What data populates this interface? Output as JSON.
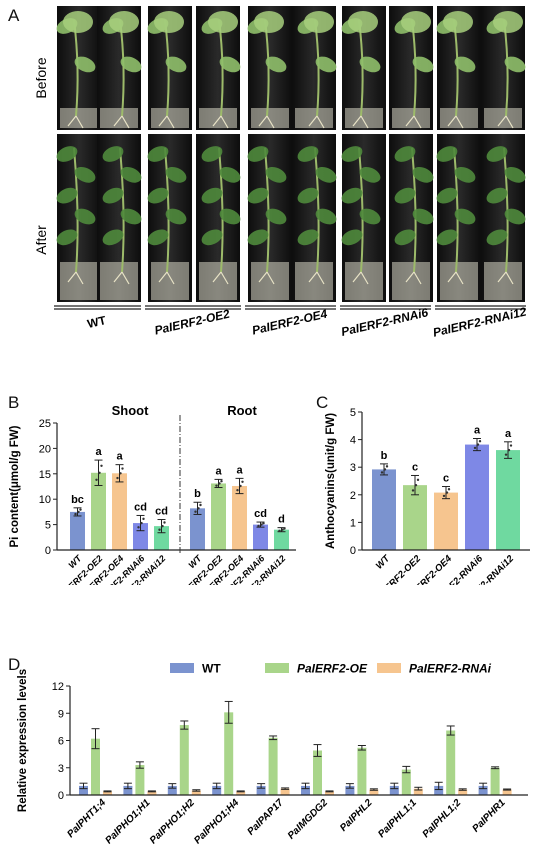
{
  "panels": {
    "A": "A",
    "B": "B",
    "C": "C",
    "D": "D"
  },
  "photo": {
    "row_labels": [
      "Before",
      "After"
    ],
    "genotypes": [
      "WT",
      "PaIERF2-OE2",
      "PaIERF2-OE4",
      "PaIERF2-RNAi6",
      "PaIERF2-RNAi12"
    ]
  },
  "colors": {
    "wt": "#7b93cf",
    "oe": "#a9d58a",
    "rnai": "#f6c58f",
    "rnai_c": "#7e88e6",
    "rnai12": "#6fd9a0"
  },
  "chart_data": [
    {
      "type": "bar",
      "panel": "B",
      "ylabel": "Pi content(μmol/g FW)",
      "ylim": [
        0,
        25
      ],
      "yticks": [
        0,
        5,
        10,
        15,
        20,
        25
      ],
      "groups": [
        {
          "name": "Shoot",
          "categories": [
            "WT",
            "PaIERF2-OE2",
            "PaIERF2-OE4",
            "PaIERF2-RNAi6",
            "PaIERF2-RNAi12"
          ],
          "values": [
            7.5,
            15.2,
            15.1,
            5.3,
            4.7
          ],
          "errors": [
            0.8,
            2.5,
            1.7,
            1.5,
            1.3
          ],
          "letters": [
            "bc",
            "a",
            "a",
            "cd",
            "cd"
          ]
        },
        {
          "name": "Root",
          "categories": [
            "WT",
            "PaIERF2-OE2",
            "PaIERF2-OE4",
            "PaIERF2-RNAi6",
            "PaIERF2-RNAi12"
          ],
          "values": [
            8.2,
            13.1,
            12.6,
            5.0,
            4.0
          ],
          "errors": [
            1.2,
            0.8,
            1.5,
            0.5,
            0.4
          ],
          "letters": [
            "b",
            "a",
            "a",
            "cd",
            "d"
          ]
        }
      ]
    },
    {
      "type": "bar",
      "panel": "C",
      "ylabel": "Anthocyanins(unit/g FW)",
      "ylim": [
        0,
        5
      ],
      "yticks": [
        0,
        1,
        2,
        3,
        4,
        5
      ],
      "categories": [
        "WT",
        "PaIERF2-OE2",
        "PaIERF2-OE4",
        "PPaIERF2-RNAi6",
        "aIERF2-RNAi12"
      ],
      "values": [
        2.92,
        2.35,
        2.08,
        3.82,
        3.62
      ],
      "errors": [
        0.2,
        0.35,
        0.22,
        0.22,
        0.3
      ],
      "letters": [
        "b",
        "c",
        "c",
        "a",
        "a"
      ]
    },
    {
      "type": "bar",
      "panel": "D",
      "ylabel": "Relative expression levels",
      "ylim": [
        0,
        12
      ],
      "yticks": [
        0,
        3,
        6,
        9,
        12
      ],
      "categories": [
        "PaIPHT1;4",
        "PaIPHO1;H1",
        "PaIPHO1;H2",
        "PaIPHO1;H4",
        "PaIPAP17",
        "PaIMGDG2",
        "PaIPHL2",
        "PaIPHL1;1",
        "PaIPHL1;2",
        "PaIPHR1"
      ],
      "series": [
        {
          "name": "WT",
          "values": [
            1.0,
            1.0,
            1.0,
            1.0,
            1.0,
            1.0,
            1.0,
            1.0,
            1.0,
            1.0
          ],
          "errors": [
            0.3,
            0.3,
            0.25,
            0.3,
            0.25,
            0.3,
            0.25,
            0.3,
            0.4,
            0.3
          ]
        },
        {
          "name": "PaIERF2-OE",
          "values": [
            6.2,
            3.3,
            7.7,
            9.1,
            6.3,
            4.9,
            5.2,
            2.8,
            7.1,
            3.0
          ],
          "errors": [
            1.1,
            0.35,
            0.45,
            1.2,
            0.2,
            0.65,
            0.25,
            0.35,
            0.5,
            0.1
          ]
        },
        {
          "name": "PaIERF2-RNAi",
          "values": [
            0.4,
            0.4,
            0.5,
            0.4,
            0.7,
            0.4,
            0.6,
            0.7,
            0.6,
            0.6
          ],
          "errors": [
            0.05,
            0.05,
            0.08,
            0.05,
            0.08,
            0.05,
            0.08,
            0.15,
            0.08,
            0.06
          ]
        }
      ]
    }
  ]
}
